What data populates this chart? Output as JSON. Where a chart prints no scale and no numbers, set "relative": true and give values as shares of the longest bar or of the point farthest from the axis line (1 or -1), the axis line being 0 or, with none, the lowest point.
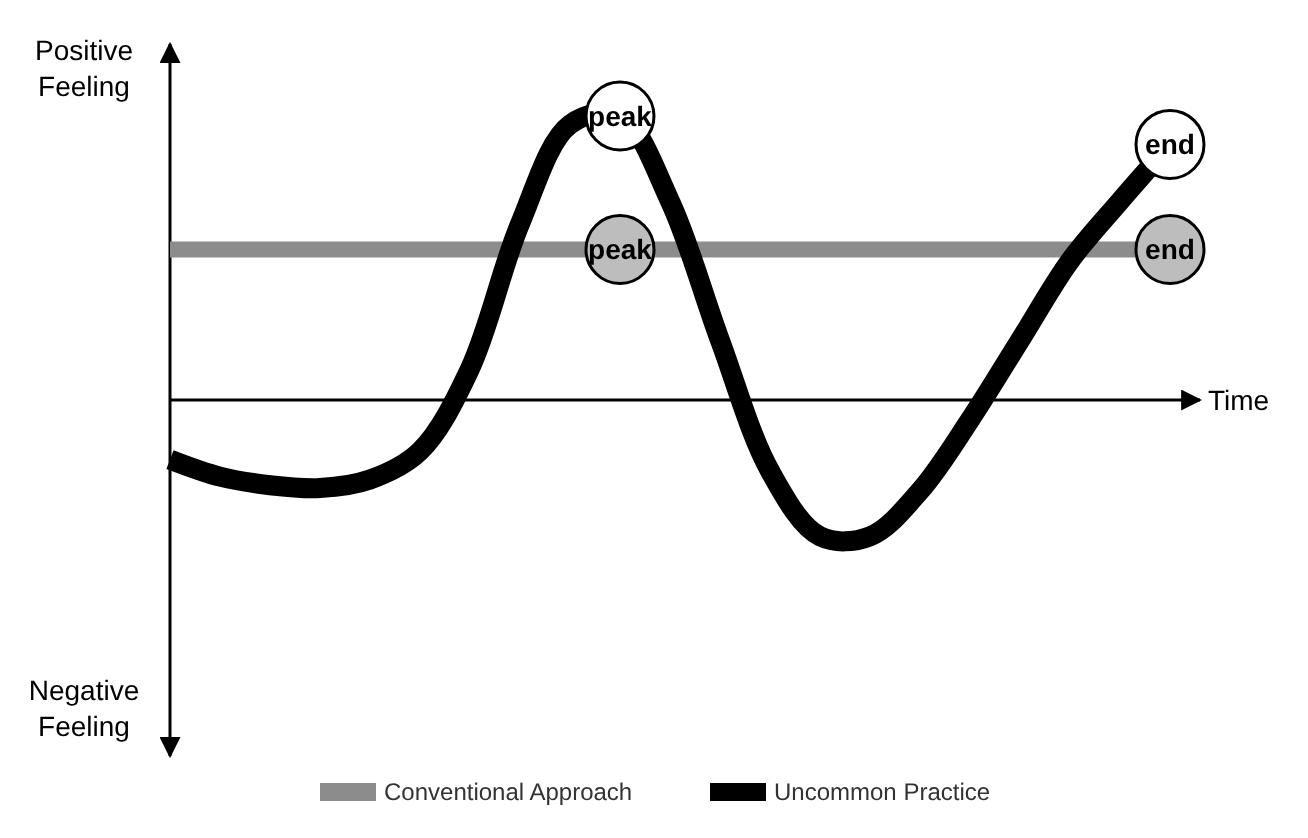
{
  "chart_data": {
    "type": "line",
    "relative": true,
    "xlabel": "Time",
    "categories": [
      null,
      null,
      null,
      null,
      null,
      null,
      null,
      null,
      null,
      null,
      null,
      null,
      null,
      null,
      null,
      null,
      null,
      null,
      null,
      null,
      null
    ],
    "series": [
      {
        "name": "Conventional Approach",
        "color": "#8c8c8c",
        "values": [
          0.53,
          0.53,
          0.53,
          0.53,
          0.53,
          0.53,
          0.53,
          0.53,
          0.53,
          0.53,
          0.53,
          0.53,
          0.53,
          0.53,
          0.53,
          0.53,
          0.53,
          0.53,
          0.53,
          0.53,
          0.53
        ]
      },
      {
        "name": "Uncommon Practice",
        "color": "#000000",
        "values": [
          -0.21,
          -0.27,
          -0.3,
          -0.31,
          -0.28,
          -0.18,
          0.11,
          0.62,
          0.97,
          1,
          0.7,
          0.21,
          -0.25,
          -0.48,
          -0.48,
          -0.32,
          -0.07,
          0.21,
          0.49,
          0.7,
          0.9
        ]
      }
    ],
    "annotations": [
      "Positive Feeling",
      "Negative Feeling",
      {
        "text": "peak",
        "y": 1
      },
      {
        "text": "end",
        "y": 0.9
      },
      {
        "text": "peak",
        "y": 0.53
      },
      {
        "text": "end",
        "y": 0.53
      }
    ],
    "legend": "bottom",
    "marker": "none",
    "line_style": "solid"
  }
}
